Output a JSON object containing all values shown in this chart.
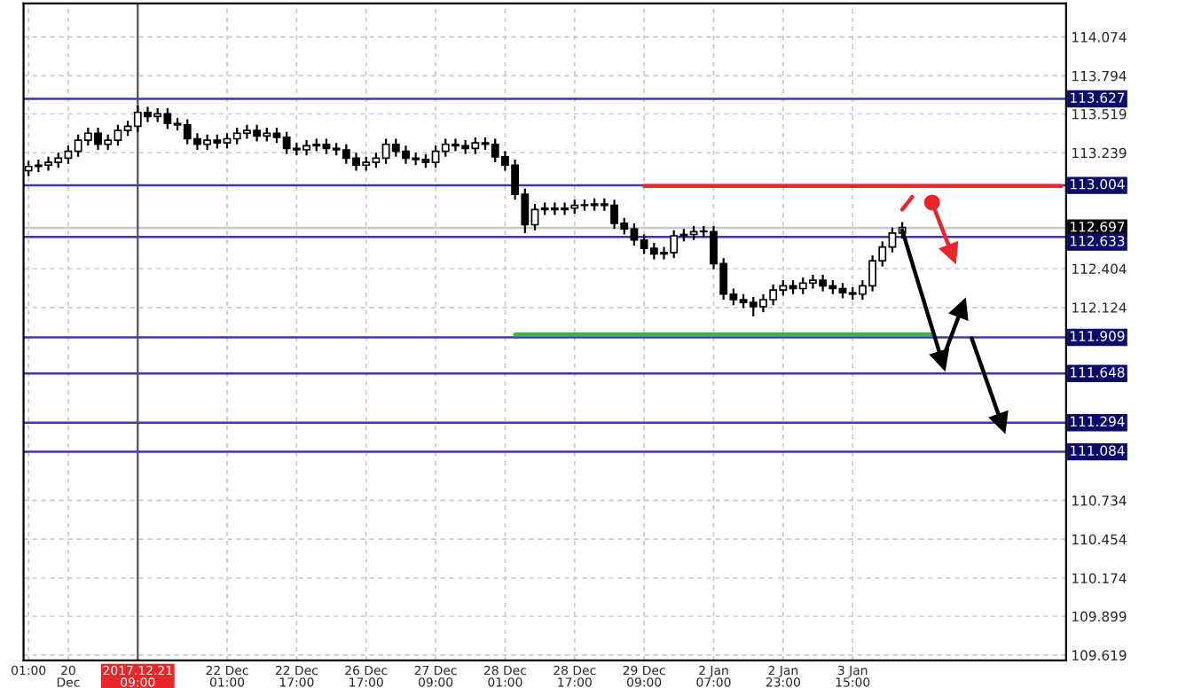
{
  "chart_data": {
    "type": "candlestick",
    "color": "#000000",
    "categories": [
      "01:00",
      null,
      null,
      null,
      "20 Dec",
      null,
      null,
      null,
      null,
      null,
      null,
      "2017.12.21 09:00",
      null,
      null,
      null,
      null,
      null,
      null,
      null,
      null,
      "22 Dec 01:00",
      null,
      null,
      null,
      null,
      null,
      null,
      "22 Dec 17:00",
      null,
      null,
      null,
      null,
      null,
      null,
      "26 Dec 17:00",
      null,
      null,
      null,
      null,
      null,
      null,
      "27 Dec 09:00",
      null,
      null,
      null,
      null,
      null,
      null,
      "28 Dec 01:00",
      null,
      null,
      null,
      null,
      null,
      null,
      "28 Dec 17:00",
      null,
      null,
      null,
      null,
      null,
      null,
      "29 Dec 09:00",
      null,
      null,
      null,
      null,
      null,
      null,
      "2 Jan 07:00",
      null,
      null,
      null,
      null,
      null,
      null,
      "2 Jan 23:00",
      null,
      null,
      null,
      null,
      null,
      null,
      "3 Jan 15:00",
      null,
      null,
      null,
      null,
      null,
      null,
      null,
      null,
      null,
      null,
      null,
      null,
      null,
      null,
      null,
      null,
      null,
      null,
      null,
      null,
      null
    ],
    "ohlc": [
      [
        113.11,
        113.18,
        113.07,
        113.14
      ],
      [
        113.14,
        113.19,
        113.1,
        113.15
      ],
      [
        113.15,
        113.21,
        113.11,
        113.17
      ],
      [
        113.17,
        113.24,
        113.13,
        113.2
      ],
      [
        113.2,
        113.29,
        113.16,
        113.25
      ],
      [
        113.25,
        113.37,
        113.21,
        113.33
      ],
      [
        113.33,
        113.42,
        113.29,
        113.38
      ],
      [
        113.38,
        113.42,
        113.26,
        113.3
      ],
      [
        113.3,
        113.37,
        113.26,
        113.33
      ],
      [
        113.33,
        113.44,
        113.29,
        113.4
      ],
      [
        113.4,
        113.47,
        113.36,
        113.43
      ],
      [
        113.43,
        113.58,
        113.39,
        113.53
      ],
      [
        113.53,
        113.57,
        113.46,
        113.5
      ],
      [
        113.5,
        113.56,
        113.46,
        113.52
      ],
      [
        113.52,
        113.56,
        113.41,
        113.45
      ],
      [
        113.45,
        113.49,
        113.4,
        113.44
      ],
      [
        113.44,
        113.48,
        113.3,
        113.34
      ],
      [
        113.34,
        113.38,
        113.26,
        113.3
      ],
      [
        113.3,
        113.37,
        113.26,
        113.33
      ],
      [
        113.33,
        113.37,
        113.27,
        113.31
      ],
      [
        113.31,
        113.38,
        113.27,
        113.34
      ],
      [
        113.34,
        113.42,
        113.3,
        113.38
      ],
      [
        113.38,
        113.44,
        113.34,
        113.4
      ],
      [
        113.4,
        113.44,
        113.32,
        113.36
      ],
      [
        113.36,
        113.42,
        113.32,
        113.38
      ],
      [
        113.38,
        113.42,
        113.31,
        113.35
      ],
      [
        113.35,
        113.39,
        113.23,
        113.27
      ],
      [
        113.27,
        113.31,
        113.22,
        113.26
      ],
      [
        113.26,
        113.33,
        113.22,
        113.29
      ],
      [
        113.29,
        113.34,
        113.25,
        113.3
      ],
      [
        113.3,
        113.34,
        113.23,
        113.27
      ],
      [
        113.27,
        113.31,
        113.22,
        113.26
      ],
      [
        113.26,
        113.3,
        113.16,
        113.2
      ],
      [
        113.2,
        113.24,
        113.11,
        113.15
      ],
      [
        113.15,
        113.21,
        113.11,
        113.17
      ],
      [
        113.17,
        113.24,
        113.13,
        113.2
      ],
      [
        113.2,
        113.34,
        113.16,
        113.3
      ],
      [
        113.3,
        113.34,
        113.21,
        113.25
      ],
      [
        113.25,
        113.29,
        113.16,
        113.2
      ],
      [
        113.2,
        113.24,
        113.15,
        113.19
      ],
      [
        113.19,
        113.23,
        113.13,
        113.17
      ],
      [
        113.17,
        113.29,
        113.13,
        113.25
      ],
      [
        113.25,
        113.34,
        113.21,
        113.3
      ],
      [
        113.3,
        113.34,
        113.25,
        113.29
      ],
      [
        113.29,
        113.33,
        113.23,
        113.27
      ],
      [
        113.27,
        113.35,
        113.23,
        113.31
      ],
      [
        113.31,
        113.35,
        113.26,
        113.3
      ],
      [
        113.3,
        113.34,
        113.17,
        113.21
      ],
      [
        113.21,
        113.25,
        113.11,
        113.15
      ],
      [
        113.15,
        113.19,
        112.9,
        112.94
      ],
      [
        112.94,
        112.98,
        112.66,
        112.72
      ],
      [
        112.72,
        112.87,
        112.68,
        112.83
      ],
      [
        112.83,
        112.88,
        112.79,
        112.84
      ],
      [
        112.84,
        112.88,
        112.79,
        112.83
      ],
      [
        112.83,
        112.88,
        112.79,
        112.84
      ],
      [
        112.84,
        112.9,
        112.8,
        112.86
      ],
      [
        112.86,
        112.9,
        112.82,
        112.86
      ],
      [
        112.86,
        112.91,
        112.82,
        112.87
      ],
      [
        112.87,
        112.91,
        112.82,
        112.86
      ],
      [
        112.86,
        112.9,
        112.69,
        112.73
      ],
      [
        112.73,
        112.77,
        112.65,
        112.69
      ],
      [
        112.69,
        112.73,
        112.57,
        112.61
      ],
      [
        112.61,
        112.65,
        112.51,
        112.55
      ],
      [
        112.55,
        112.59,
        112.47,
        112.51
      ],
      [
        112.51,
        112.56,
        112.47,
        112.52
      ],
      [
        112.52,
        112.68,
        112.48,
        112.64
      ],
      [
        112.64,
        112.69,
        112.6,
        112.65
      ],
      [
        112.65,
        112.71,
        112.61,
        112.67
      ],
      [
        112.67,
        112.71,
        112.63,
        112.67
      ],
      [
        112.67,
        112.71,
        112.4,
        112.44
      ],
      [
        112.44,
        112.48,
        112.18,
        112.22
      ],
      [
        112.22,
        112.26,
        112.14,
        112.18
      ],
      [
        112.18,
        112.22,
        112.12,
        112.16
      ],
      [
        112.16,
        112.2,
        112.06,
        112.13
      ],
      [
        112.13,
        112.22,
        112.09,
        112.18
      ],
      [
        112.18,
        112.29,
        112.14,
        112.25
      ],
      [
        112.25,
        112.32,
        112.21,
        112.28
      ],
      [
        112.28,
        112.32,
        112.22,
        112.26
      ],
      [
        112.26,
        112.34,
        112.22,
        112.3
      ],
      [
        112.3,
        112.36,
        112.26,
        112.32
      ],
      [
        112.32,
        112.36,
        112.24,
        112.28
      ],
      [
        112.28,
        112.32,
        112.22,
        112.26
      ],
      [
        112.26,
        112.3,
        112.19,
        112.23
      ],
      [
        112.23,
        112.27,
        112.18,
        112.22
      ],
      [
        112.22,
        112.32,
        112.18,
        112.28
      ],
      [
        112.28,
        112.5,
        112.24,
        112.46
      ],
      [
        112.46,
        112.6,
        112.42,
        112.56
      ],
      [
        112.56,
        112.7,
        112.52,
        112.66
      ],
      [
        112.66,
        112.74,
        112.62,
        112.7
      ],
      null,
      null,
      null,
      null,
      null,
      null,
      null,
      null,
      null,
      null,
      null,
      null,
      null,
      null,
      null,
      null
    ],
    "series": [
      {
        "type": "line",
        "color": "#e8262b",
        "values": [
          null,
          null,
          null,
          null,
          null,
          null,
          null,
          null,
          null,
          null,
          null,
          null,
          null,
          null,
          null,
          null,
          null,
          null,
          null,
          null,
          null,
          null,
          null,
          null,
          null,
          null,
          null,
          null,
          null,
          null,
          null,
          null,
          null,
          null,
          null,
          null,
          null,
          null,
          null,
          null,
          null,
          null,
          null,
          null,
          null,
          null,
          null,
          null,
          null,
          null,
          null,
          null,
          null,
          null,
          null,
          null,
          null,
          null,
          null,
          null,
          null,
          null,
          113.0,
          null,
          null,
          null,
          null,
          null,
          null,
          null,
          null,
          null,
          null,
          null,
          null,
          null,
          null,
          null,
          null,
          null,
          null,
          null,
          null,
          null,
          null,
          null,
          null,
          null,
          null,
          null,
          null,
          null,
          null,
          null,
          null,
          null,
          null,
          null,
          null,
          null,
          null,
          null,
          null,
          null,
          113.0
        ]
      },
      {
        "type": "line",
        "color": "#3cb44b",
        "values": [
          null,
          null,
          null,
          null,
          null,
          null,
          null,
          null,
          null,
          null,
          null,
          null,
          null,
          null,
          null,
          null,
          null,
          null,
          null,
          null,
          null,
          null,
          null,
          null,
          null,
          null,
          null,
          null,
          null,
          null,
          null,
          null,
          null,
          null,
          null,
          null,
          null,
          null,
          null,
          null,
          null,
          null,
          null,
          null,
          null,
          null,
          null,
          null,
          null,
          111.93,
          null,
          null,
          null,
          null,
          null,
          null,
          null,
          null,
          null,
          null,
          null,
          null,
          null,
          null,
          null,
          null,
          null,
          null,
          null,
          null,
          null,
          null,
          null,
          null,
          null,
          null,
          null,
          null,
          null,
          null,
          null,
          null,
          null,
          null,
          null,
          null,
          null,
          null,
          null,
          null,
          null,
          111.93,
          null,
          null,
          null,
          null,
          null,
          null,
          null,
          null,
          null,
          null,
          null,
          null,
          null
        ]
      },
      {
        "type": "line",
        "color": "#e8262b",
        "values": [
          null,
          null,
          null,
          null,
          null,
          null,
          null,
          null,
          null,
          null,
          null,
          null,
          null,
          null,
          null,
          null,
          null,
          null,
          null,
          null,
          null,
          null,
          null,
          null,
          null,
          null,
          null,
          null,
          null,
          null,
          null,
          null,
          null,
          null,
          null,
          null,
          null,
          null,
          null,
          null,
          null,
          null,
          null,
          null,
          null,
          null,
          null,
          null,
          null,
          null,
          null,
          null,
          null,
          null,
          null,
          null,
          null,
          null,
          null,
          null,
          null,
          null,
          null,
          null,
          null,
          null,
          null,
          null,
          null,
          null,
          null,
          null,
          null,
          null,
          null,
          null,
          null,
          null,
          null,
          null,
          null,
          null,
          null,
          null,
          null,
          null,
          null,
          null,
          112.83,
          112.92,
          null,
          null,
          null,
          null,
          null,
          null,
          null,
          null,
          null,
          null,
          null,
          null,
          null,
          null,
          null
        ]
      },
      {
        "type": "scatter",
        "color": "#e8262b",
        "marker": "circle",
        "values": [
          null,
          null,
          null,
          null,
          null,
          null,
          null,
          null,
          null,
          null,
          null,
          null,
          null,
          null,
          null,
          null,
          null,
          null,
          null,
          null,
          null,
          null,
          null,
          null,
          null,
          null,
          null,
          null,
          null,
          null,
          null,
          null,
          null,
          null,
          null,
          null,
          null,
          null,
          null,
          null,
          null,
          null,
          null,
          null,
          null,
          null,
          null,
          null,
          null,
          null,
          null,
          null,
          null,
          null,
          null,
          null,
          null,
          null,
          null,
          null,
          null,
          null,
          null,
          null,
          null,
          null,
          null,
          null,
          null,
          null,
          null,
          null,
          null,
          null,
          null,
          null,
          null,
          null,
          null,
          null,
          null,
          null,
          null,
          null,
          null,
          null,
          null,
          null,
          null,
          null,
          null,
          112.88,
          null,
          null,
          null,
          null,
          null,
          null,
          null,
          null,
          null,
          null,
          null,
          null,
          null
        ]
      },
      {
        "type": "line",
        "color": "#e8262b",
        "marker": "triangle",
        "values": [
          null,
          null,
          null,
          null,
          null,
          null,
          null,
          null,
          null,
          null,
          null,
          null,
          null,
          null,
          null,
          null,
          null,
          null,
          null,
          null,
          null,
          null,
          null,
          null,
          null,
          null,
          null,
          null,
          null,
          null,
          null,
          null,
          null,
          null,
          null,
          null,
          null,
          null,
          null,
          null,
          null,
          null,
          null,
          null,
          null,
          null,
          null,
          null,
          null,
          null,
          null,
          null,
          null,
          null,
          null,
          null,
          null,
          null,
          null,
          null,
          null,
          null,
          null,
          null,
          null,
          null,
          null,
          null,
          null,
          null,
          null,
          null,
          null,
          null,
          null,
          null,
          null,
          null,
          null,
          null,
          null,
          null,
          null,
          null,
          null,
          null,
          null,
          null,
          null,
          null,
          null,
          112.88,
          null,
          112.51,
          null,
          null,
          null,
          null,
          null,
          null,
          null,
          null,
          null,
          null,
          null
        ]
      },
      {
        "type": "line",
        "color": "#000000",
        "marker": "triangle",
        "values": [
          null,
          null,
          null,
          null,
          null,
          null,
          null,
          null,
          null,
          null,
          null,
          null,
          null,
          null,
          null,
          null,
          null,
          null,
          null,
          null,
          null,
          null,
          null,
          null,
          null,
          null,
          null,
          null,
          null,
          null,
          null,
          null,
          null,
          null,
          null,
          null,
          null,
          null,
          null,
          null,
          null,
          null,
          null,
          null,
          null,
          null,
          null,
          null,
          null,
          null,
          null,
          null,
          null,
          null,
          null,
          null,
          null,
          null,
          null,
          null,
          null,
          null,
          null,
          null,
          null,
          null,
          null,
          null,
          null,
          null,
          null,
          null,
          null,
          null,
          null,
          null,
          null,
          null,
          null,
          null,
          null,
          null,
          null,
          null,
          null,
          null,
          null,
          null,
          112.68,
          null,
          null,
          null,
          111.74,
          null,
          null,
          null,
          null,
          null,
          null,
          null,
          null,
          null,
          null,
          null,
          null
        ]
      },
      {
        "type": "line",
        "color": "#000000",
        "marker": "triangle",
        "values": [
          null,
          null,
          null,
          null,
          null,
          null,
          null,
          null,
          null,
          null,
          null,
          null,
          null,
          null,
          null,
          null,
          null,
          null,
          null,
          null,
          null,
          null,
          null,
          null,
          null,
          null,
          null,
          null,
          null,
          null,
          null,
          null,
          null,
          null,
          null,
          null,
          null,
          null,
          null,
          null,
          null,
          null,
          null,
          null,
          null,
          null,
          null,
          null,
          null,
          null,
          null,
          null,
          null,
          null,
          null,
          null,
          null,
          null,
          null,
          null,
          null,
          null,
          null,
          null,
          null,
          null,
          null,
          null,
          null,
          null,
          null,
          null,
          null,
          null,
          null,
          null,
          null,
          null,
          null,
          null,
          null,
          null,
          null,
          null,
          null,
          null,
          null,
          null,
          null,
          null,
          null,
          null,
          111.74,
          null,
          112.12,
          null,
          null,
          null,
          null,
          null,
          null,
          null,
          null,
          null,
          null
        ]
      },
      {
        "type": "line",
        "color": "#000000",
        "marker": "triangle",
        "values": [
          null,
          null,
          null,
          null,
          null,
          null,
          null,
          null,
          null,
          null,
          null,
          null,
          null,
          null,
          null,
          null,
          null,
          null,
          null,
          null,
          null,
          null,
          null,
          null,
          null,
          null,
          null,
          null,
          null,
          null,
          null,
          null,
          null,
          null,
          null,
          null,
          null,
          null,
          null,
          null,
          null,
          null,
          null,
          null,
          null,
          null,
          null,
          null,
          null,
          null,
          null,
          null,
          null,
          null,
          null,
          null,
          null,
          null,
          null,
          null,
          null,
          null,
          null,
          null,
          null,
          null,
          null,
          null,
          null,
          null,
          null,
          null,
          null,
          null,
          null,
          null,
          null,
          null,
          null,
          null,
          null,
          null,
          null,
          null,
          null,
          null,
          null,
          null,
          null,
          null,
          null,
          null,
          null,
          null,
          null,
          111.9,
          null,
          null,
          111.29,
          null,
          null,
          null,
          null,
          null,
          null
        ]
      }
    ],
    "ylim": [
      109.58,
      114.315
    ],
    "yticks": [
      114.074,
      113.794,
      113.519,
      113.239,
      112.404,
      112.124,
      110.734,
      110.454,
      110.174,
      109.899,
      109.619
    ],
    "ref_lines": [
      {
        "axis": "y",
        "value": 113.627,
        "label": "113.627",
        "color": "#3a3aa8"
      },
      {
        "axis": "y",
        "value": 113.004,
        "label": "113.004",
        "color": "#3a3aa8"
      },
      {
        "axis": "y",
        "value": 112.697,
        "label": "112.697",
        "color": "#c8c8c8"
      },
      {
        "axis": "y",
        "value": 112.633,
        "label": "112.633",
        "color": "#3a3aa8"
      },
      {
        "axis": "y",
        "value": 111.909,
        "label": "111.909",
        "color": "#3a3aa8"
      },
      {
        "axis": "y",
        "value": 111.648,
        "label": "111.648",
        "color": "#3a3aa8"
      },
      {
        "axis": "y",
        "value": 111.294,
        "label": "111.294",
        "color": "#3a3aa8"
      },
      {
        "axis": "y",
        "value": 111.084,
        "label": "111.084",
        "color": "#3a3aa8"
      },
      {
        "axis": "x",
        "value": "2017.12.21 09:00",
        "label": null,
        "color": "#505060"
      }
    ],
    "grid": true
  }
}
